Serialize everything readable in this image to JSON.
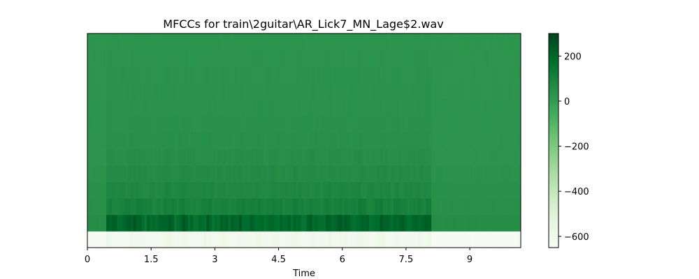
{
  "chart_data": {
    "type": "heatmap",
    "title": "MFCCs for train\\2guitar\\AR_Lick7_MN_Lage$2.wav",
    "xlabel": "Time",
    "ylabel": "",
    "xlim": [
      0,
      10.2
    ],
    "x_ticks": [
      "0",
      "1.5",
      "3",
      "4.5",
      "6",
      "7.5",
      "9"
    ],
    "x_tick_values": [
      0,
      1.5,
      3,
      4.5,
      6,
      7.5,
      9
    ],
    "n_coefficients": 13,
    "colormap": "Greens",
    "colorbar": {
      "range": [
        -650,
        300
      ],
      "ticks": [
        "200",
        "0",
        "−200",
        "−400",
        "−600"
      ],
      "tick_values": [
        200,
        0,
        -200,
        -400,
        -600
      ]
    },
    "row_profiles": [
      {
        "coefficient": 0,
        "baseline": -640,
        "active": -560
      },
      {
        "coefficient": 1,
        "baseline": 55,
        "active": 260
      },
      {
        "coefficient": 2,
        "baseline": 45,
        "active": 130
      },
      {
        "coefficient": 3,
        "baseline": 40,
        "active": 95
      },
      {
        "coefficient": 4,
        "baseline": 35,
        "active": 75
      },
      {
        "coefficient": 5,
        "baseline": 30,
        "active": 60
      },
      {
        "coefficient": 6,
        "baseline": 30,
        "active": 50
      },
      {
        "coefficient": 7,
        "baseline": 28,
        "active": 45
      },
      {
        "coefficient": 8,
        "baseline": 28,
        "active": 40
      },
      {
        "coefficient": 9,
        "baseline": 27,
        "active": 38
      },
      {
        "coefficient": 10,
        "baseline": 26,
        "active": 36
      },
      {
        "coefficient": 11,
        "baseline": 26,
        "active": 34
      },
      {
        "coefficient": 12,
        "baseline": 25,
        "active": 32
      }
    ],
    "active_time_range": [
      0.45,
      8.1
    ],
    "onset_times": [
      0.45,
      1.1,
      1.9,
      2.3,
      2.8,
      3.2,
      3.6,
      4.0,
      4.4,
      4.9,
      5.3,
      5.7,
      6.0,
      6.4,
      6.9,
      7.3,
      7.8,
      8.05
    ]
  }
}
